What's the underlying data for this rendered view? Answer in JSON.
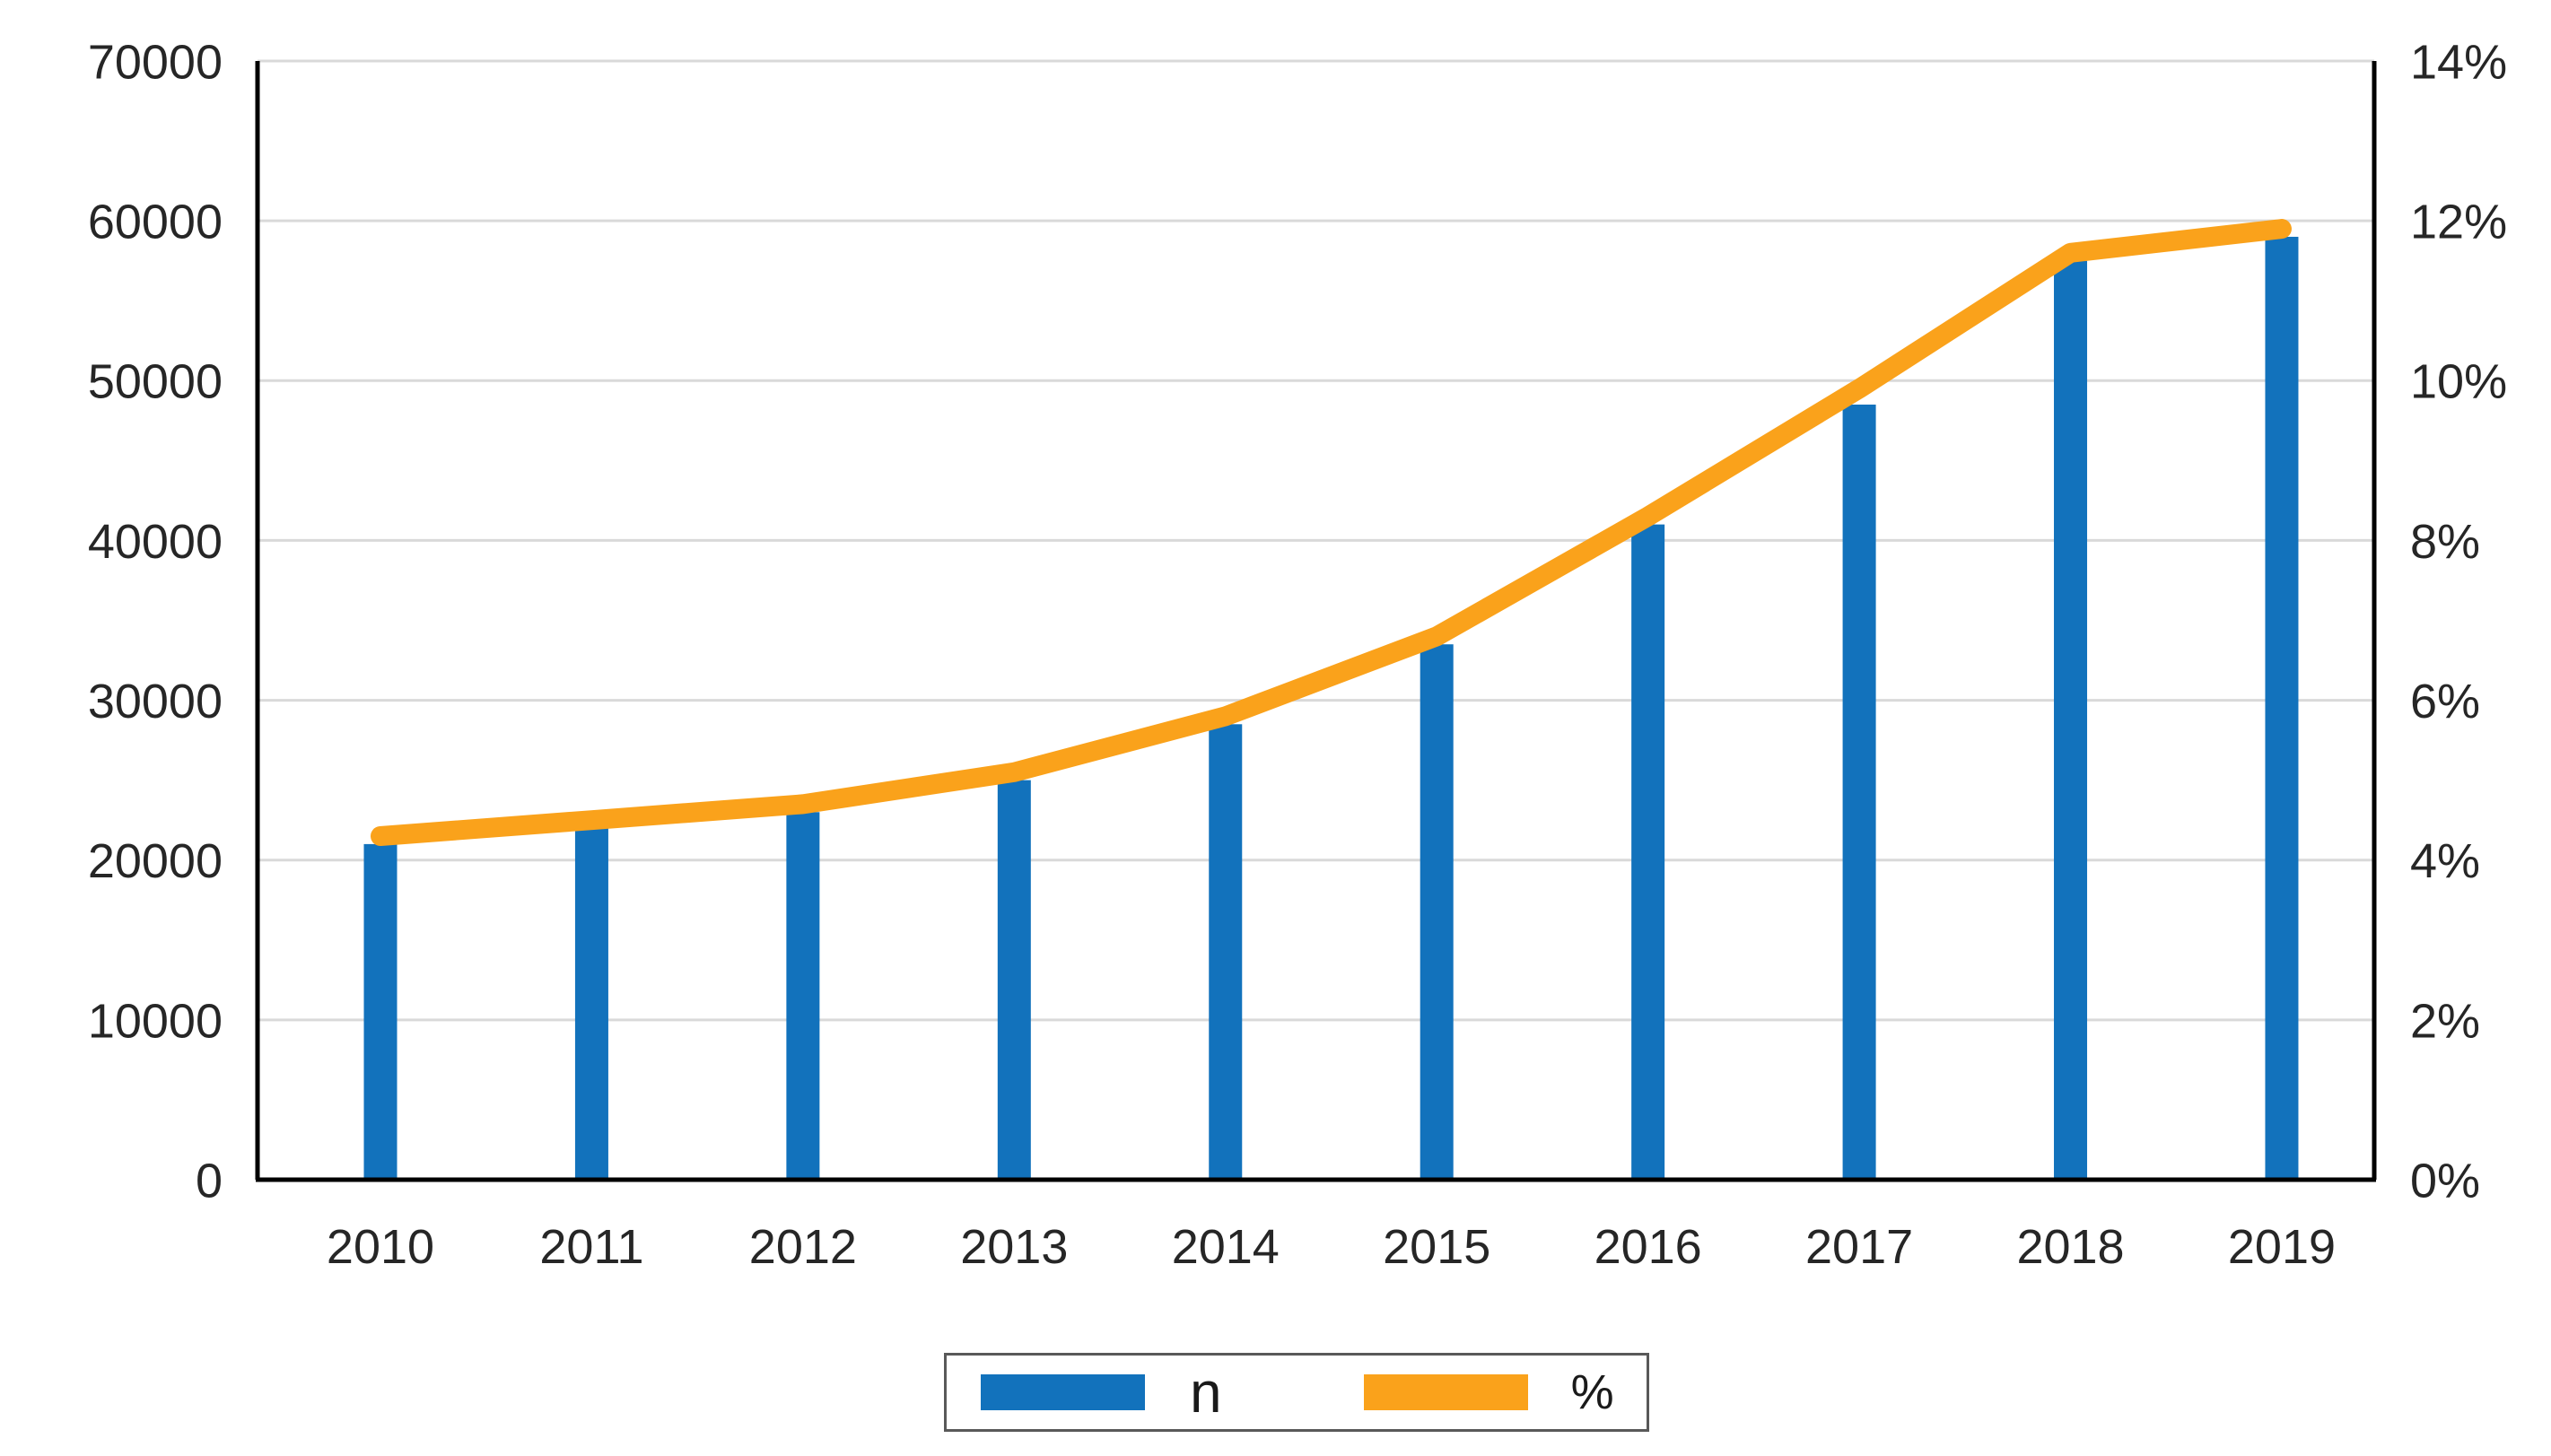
{
  "chart_data": {
    "type": "bar",
    "subtype": "combo-bar-line",
    "title": "",
    "categories": [
      "2010",
      "2011",
      "2012",
      "2013",
      "2014",
      "2015",
      "2016",
      "2017",
      "2018",
      "2019"
    ],
    "series": [
      {
        "name": "n",
        "type": "bar",
        "axis": "left",
        "color": "#1272BC",
        "values": [
          21000,
          22000,
          23000,
          25000,
          28500,
          33500,
          41000,
          48500,
          57500,
          59000
        ]
      },
      {
        "name": "%",
        "type": "line",
        "axis": "right",
        "color": "#FAA21B",
        "values": [
          4.3,
          4.5,
          4.7,
          5.1,
          5.8,
          6.8,
          8.3,
          9.9,
          11.6,
          11.9
        ]
      }
    ],
    "left_axis": {
      "min": 0,
      "max": 70000,
      "step": 10000,
      "tick_labels": [
        "70000",
        "60000",
        "50000",
        "40000",
        "30000",
        "20000",
        "10000",
        "0"
      ]
    },
    "right_axis": {
      "min": 0,
      "max": 14,
      "step": 2,
      "tick_labels": [
        "14%",
        "12%",
        "10%",
        "8%",
        "6%",
        "4%",
        "2%",
        "0%"
      ]
    },
    "grid": true,
    "legend_position": "bottom",
    "colors": {
      "gridline": "#D9D9D9",
      "axis_line": "#000000",
      "tick_text": "#262626",
      "background": "#FFFFFF",
      "legend_border": "#595959"
    }
  }
}
